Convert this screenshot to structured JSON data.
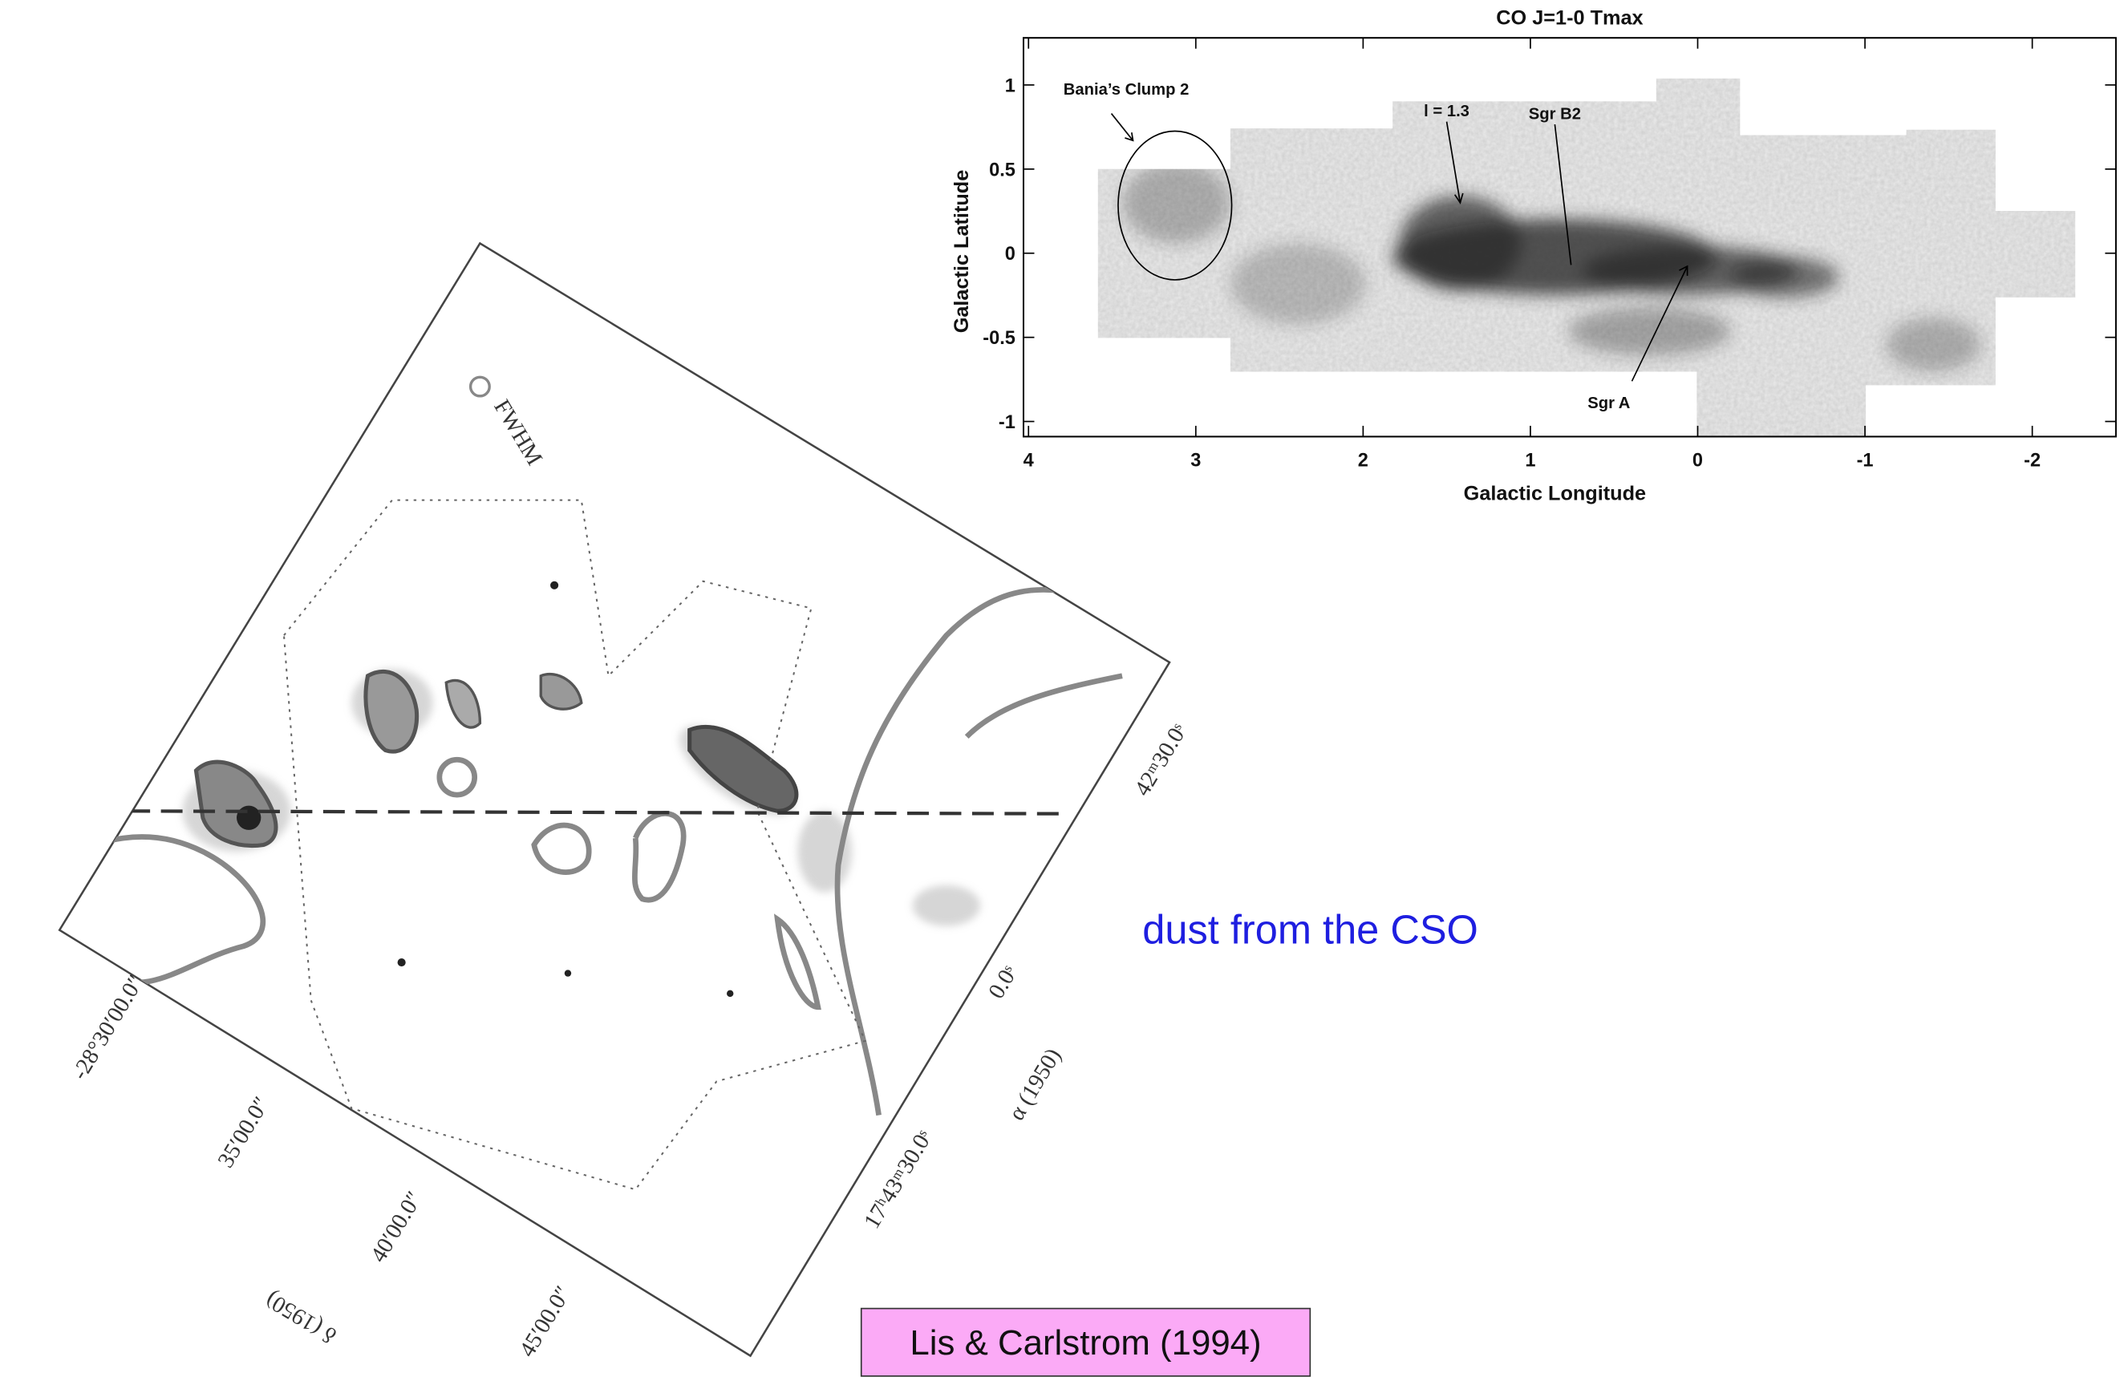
{
  "co_map": {
    "title": "CO J=1-0   Tmax",
    "x_label": "Galactic Longitude",
    "y_label": "Galactic Latitude",
    "xlim": [
      4.03,
      -2.5
    ],
    "ylim": [
      -1.09,
      1.28
    ],
    "xticks": [
      4,
      3,
      2,
      1,
      0,
      -1,
      -2
    ],
    "yticks": [
      -1,
      -0.5,
      0,
      0.5,
      1
    ],
    "annotations": [
      "Bania’s Clump 2",
      "l = 1.3",
      "Sgr B2",
      "Sgr A"
    ]
  },
  "dust_map": {
    "beam_label": "FWHM",
    "dec_labels": [
      "-28°30′00.0″",
      "35′00.0″",
      "40′00.0″",
      "45′00.0″"
    ],
    "dec_axis": "δ (1950)",
    "ra_labels": [
      "42ᵐ30.0ˢ",
      "0.0ˢ",
      "17ʰ43ᵐ30.0ˢ"
    ],
    "ra_axis": "α (1950)"
  },
  "caption": "dust from the CSO",
  "citation": "Lis & Carlstrom (1994)"
}
